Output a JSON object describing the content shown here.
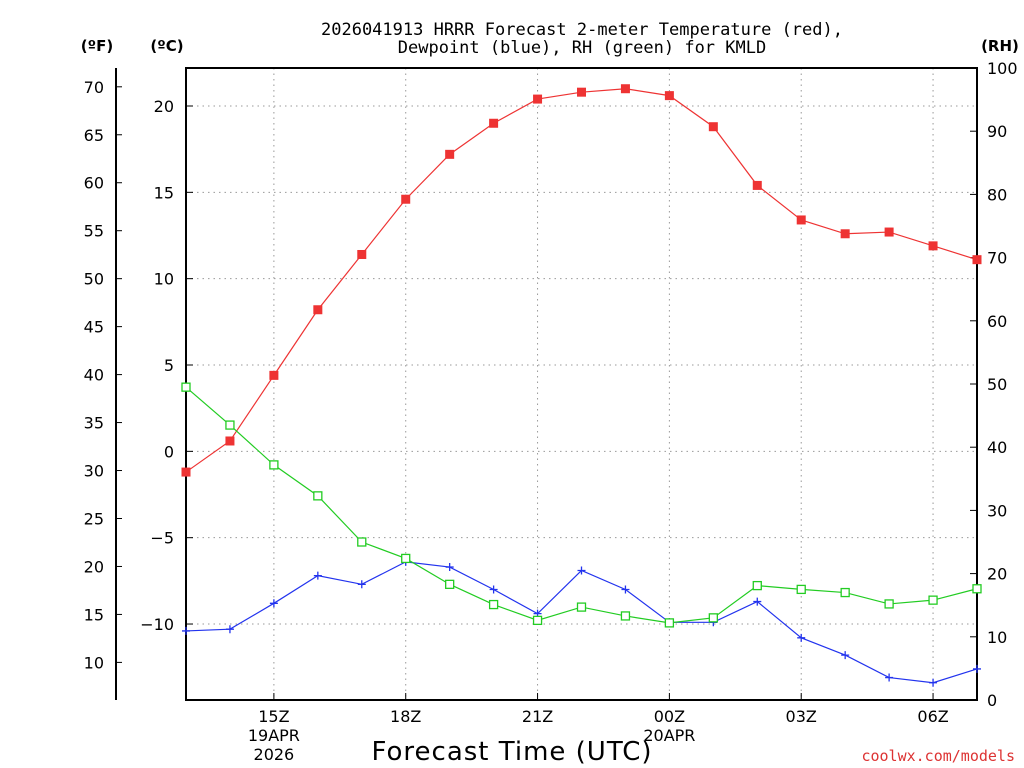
{
  "chart_data": {
    "type": "line",
    "title_lines": [
      "2026041913 HRRR Forecast 2-meter Temperature (red),",
      "Dewpoint (blue), RH (green) for KMLD"
    ],
    "units": {
      "fahrenheit": "(ºF)",
      "celsius": "(ºC)",
      "rh": "(RH)"
    },
    "xlabel": "Forecast Time (UTC)",
    "credit": "coolwx.com/models",
    "x_hours": [
      13,
      14,
      15,
      16,
      17,
      18,
      19,
      20,
      21,
      22,
      23,
      24,
      25,
      26,
      27,
      28,
      29,
      30,
      31
    ],
    "x_ticks": [
      {
        "hour": 15,
        "label": "15Z",
        "date_line1": "19APR",
        "date_line2": "2026"
      },
      {
        "hour": 18,
        "label": "18Z"
      },
      {
        "hour": 21,
        "label": "21Z"
      },
      {
        "hour": 24,
        "label": "00Z",
        "date_line1": "20APR"
      },
      {
        "hour": 27,
        "label": "03Z"
      },
      {
        "hour": 30,
        "label": "06Z"
      }
    ],
    "celsius_axis": {
      "ylim": [
        -14.4,
        22.2
      ],
      "ticks": [
        20,
        15,
        10,
        5,
        0,
        -5,
        -10
      ],
      "tick_labels": [
        "20",
        "15",
        "10",
        "5",
        "0",
        "−5",
        "−10"
      ]
    },
    "fahrenheit_axis": {
      "ticks": [
        70,
        65,
        60,
        55,
        50,
        45,
        40,
        35,
        30,
        25,
        20,
        15,
        10
      ],
      "tick_labels": [
        "70",
        "65",
        "60",
        "55",
        "50",
        "45",
        "40",
        "35",
        "30",
        "25",
        "20",
        "15",
        "10"
      ]
    },
    "rh_axis": {
      "ylim": [
        0,
        100
      ],
      "ticks": [
        100,
        90,
        80,
        70,
        60,
        50,
        40,
        30,
        20,
        10,
        0
      ],
      "tick_labels": [
        "100",
        "90",
        "80",
        "70",
        "60",
        "50",
        "40",
        "30",
        "20",
        "10",
        "0"
      ]
    },
    "grid": true,
    "series": [
      {
        "name": "Temperature",
        "axis": "celsius",
        "color": "#ee3333",
        "marker": "filled-square",
        "values": [
          -1.2,
          0.6,
          4.4,
          8.2,
          11.4,
          14.6,
          17.2,
          19.0,
          20.4,
          20.8,
          21.0,
          20.6,
          18.8,
          15.4,
          13.4,
          12.6,
          12.7,
          11.9,
          11.1
        ]
      },
      {
        "name": "Dewpoint",
        "axis": "celsius",
        "color": "#2233ee",
        "marker": "plus",
        "values": [
          -10.4,
          -10.3,
          -8.8,
          -7.2,
          -7.7,
          -6.4,
          -6.7,
          -8.0,
          -9.4,
          -6.9,
          -8.0,
          -9.9,
          -9.9,
          -8.7,
          -10.8,
          -11.8,
          -13.1,
          -13.4,
          -12.6
        ]
      },
      {
        "name": "RH",
        "axis": "rh",
        "color": "#22cc22",
        "marker": "open-square",
        "values": [
          49.5,
          43.5,
          37.2,
          32.3,
          25.0,
          22.4,
          18.3,
          15.1,
          12.6,
          14.7,
          13.3,
          12.2,
          13.0,
          18.1,
          17.5,
          17.0,
          15.2,
          15.8,
          17.6
        ]
      }
    ]
  }
}
